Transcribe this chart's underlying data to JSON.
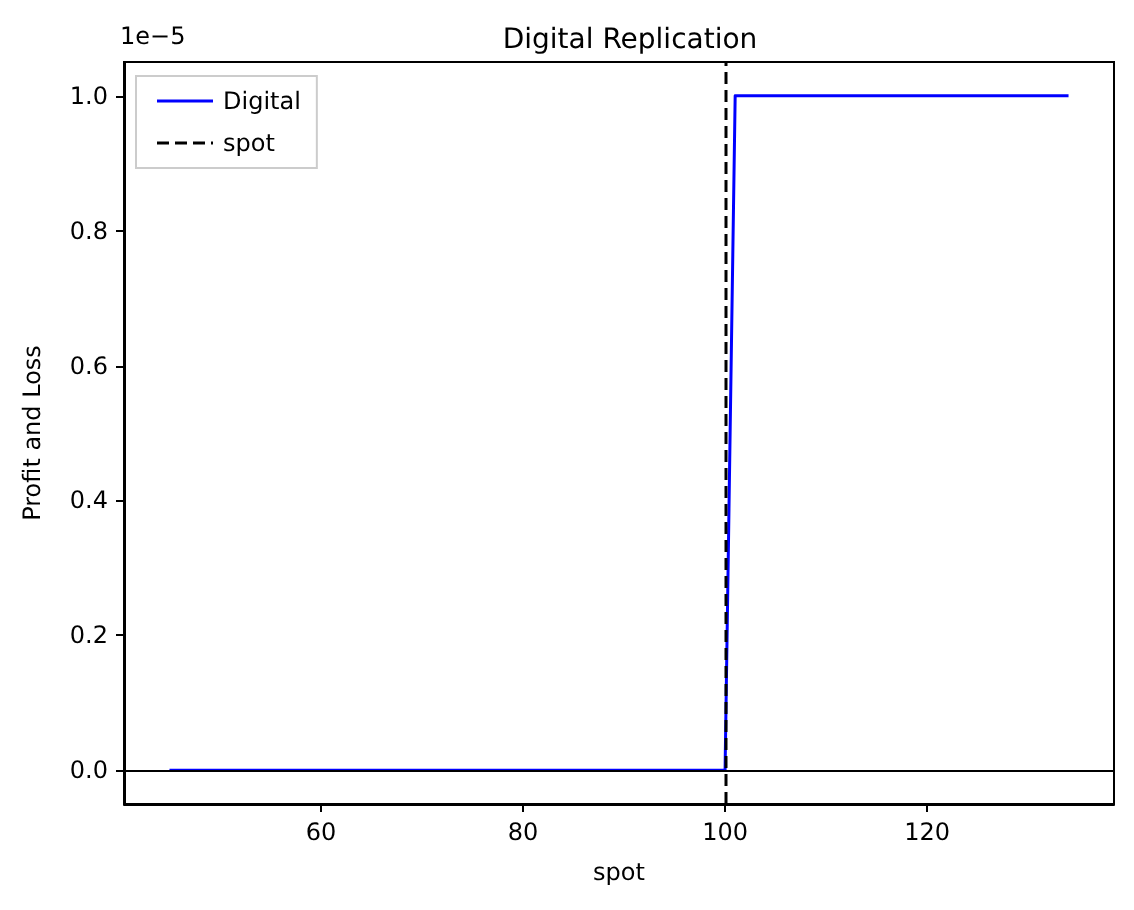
{
  "chart_data": {
    "type": "line",
    "title": "Digital Replication",
    "xlabel": "spot",
    "ylabel": "Profit and Loss",
    "annotations": [
      "1e−5"
    ],
    "x": [
      45,
      100,
      101,
      134
    ],
    "series": [
      {
        "name": "Digital",
        "color": "#0000ff",
        "values": [
          0,
          0,
          1,
          1
        ]
      }
    ],
    "xlim": [
      40.5,
      138.5
    ],
    "xticks": [
      60,
      80,
      100,
      120
    ],
    "ylim": [
      -0.05,
      1.05
    ],
    "yticks": [
      {
        "value": 0,
        "label": "0.0"
      },
      {
        "value": 0.2,
        "label": "0.2"
      },
      {
        "value": 0.4,
        "label": "0.4"
      },
      {
        "value": 0.6,
        "label": "0.6"
      },
      {
        "value": 0.8,
        "label": "0.8"
      },
      {
        "value": 1,
        "label": "1.0"
      }
    ],
    "ref_lines": [
      {
        "axis": "y",
        "value": 0,
        "color": "#000000",
        "line_style": "solid"
      },
      {
        "axis": "x",
        "value": 100,
        "label": "spot",
        "color": "#000000",
        "line_style": "dashed"
      }
    ],
    "legend": "top left",
    "marker": "none",
    "line_style": "solid"
  }
}
